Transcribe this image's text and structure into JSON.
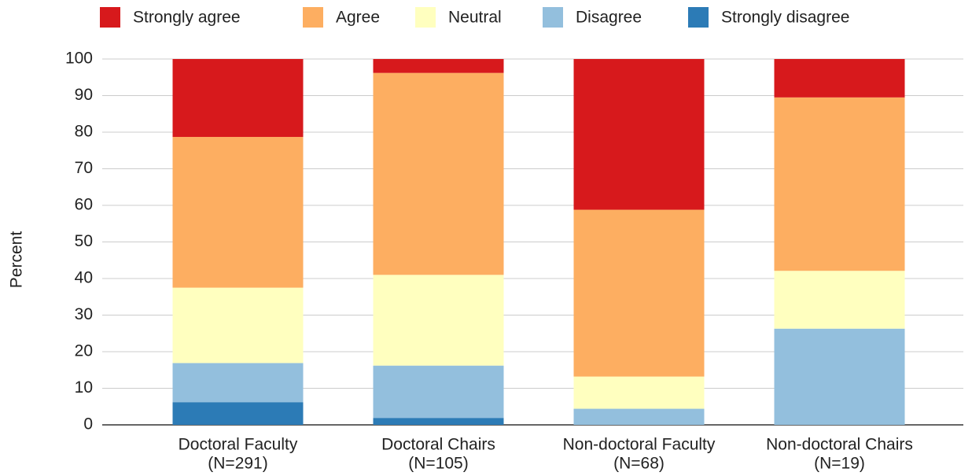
{
  "chart_data": {
    "type": "stacked_bar",
    "y_label": "Percent",
    "categories": [
      [
        "Doctoral Faculty",
        "(N=291)"
      ],
      [
        "Doctoral Chairs",
        "(N=105)"
      ],
      [
        "Non-doctoral Faculty",
        "(N=68)"
      ],
      [
        "Non-doctoral Chairs",
        "(N=19)"
      ]
    ],
    "series": [
      {
        "name": "Strongly agree",
        "color": "#d7191c",
        "values": [
          21.3,
          3.8,
          41.2,
          10.5
        ]
      },
      {
        "name": "Agree",
        "color": "#fdae61",
        "values": [
          41.2,
          55.2,
          45.6,
          47.4
        ]
      },
      {
        "name": "Neutral",
        "color": "#ffffbf",
        "values": [
          20.6,
          24.8,
          8.8,
          15.8
        ]
      },
      {
        "name": "Disagree",
        "color": "#93bfdd",
        "values": [
          10.7,
          14.3,
          4.4,
          26.3
        ]
      },
      {
        "name": "Strongly disagree",
        "color": "#2c7bb6",
        "values": [
          6.2,
          1.9,
          0,
          0
        ]
      }
    ],
    "ylim": [
      0,
      100
    ],
    "yticks": [
      0,
      10,
      20,
      30,
      40,
      50,
      60,
      70,
      80,
      90,
      100
    ],
    "grid": true,
    "legend": "top"
  }
}
